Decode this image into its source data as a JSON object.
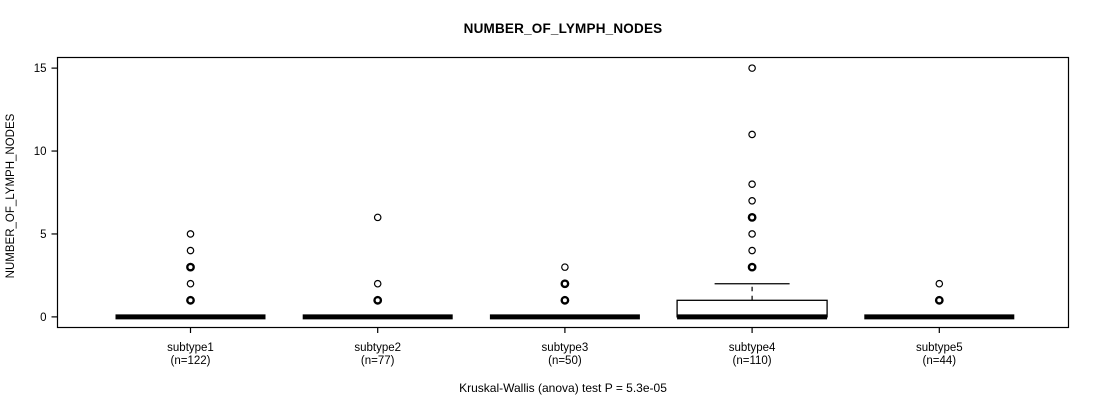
{
  "chart_data": {
    "type": "boxplot",
    "title": "NUMBER_OF_LYMPH_NODES",
    "ylabel": "NUMBER_OF_LYMPH_NODES",
    "xlabel": "",
    "footer": "Kruskal-Wallis (anova) test P = 5.3e-05",
    "yticks": [
      0,
      5,
      10,
      15
    ],
    "ylim": [
      -0.64,
      15.64
    ],
    "grid": false,
    "legend": "none",
    "frame_color": "#000000",
    "background_color": "#ffffff",
    "groups": [
      {
        "label": "subtype1",
        "sublabel": "(n=122)",
        "n": 122,
        "q1": 0,
        "median": 0,
        "q3": 0,
        "whisker_low": 0,
        "whisker_high": 0,
        "outliers": [
          {
            "v": 1,
            "bold": true
          },
          {
            "v": 2,
            "bold": false
          },
          {
            "v": 3,
            "bold": true
          },
          {
            "v": 4,
            "bold": false
          },
          {
            "v": 5,
            "bold": false
          }
        ]
      },
      {
        "label": "subtype2",
        "sublabel": "(n=77)",
        "n": 77,
        "q1": 0,
        "median": 0,
        "q3": 0,
        "whisker_low": 0,
        "whisker_high": 0,
        "outliers": [
          {
            "v": 1,
            "bold": true
          },
          {
            "v": 2,
            "bold": false
          },
          {
            "v": 6,
            "bold": false
          }
        ]
      },
      {
        "label": "subtype3",
        "sublabel": "(n=50)",
        "n": 50,
        "q1": 0,
        "median": 0,
        "q3": 0,
        "whisker_low": 0,
        "whisker_high": 0,
        "outliers": [
          {
            "v": 1,
            "bold": true
          },
          {
            "v": 2,
            "bold": true
          },
          {
            "v": 3,
            "bold": false
          }
        ]
      },
      {
        "label": "subtype4",
        "sublabel": "(n=110)",
        "n": 110,
        "q1": 0,
        "median": 0,
        "q3": 1,
        "whisker_low": 0,
        "whisker_high": 2,
        "outliers": [
          {
            "v": 3,
            "bold": true
          },
          {
            "v": 4,
            "bold": false
          },
          {
            "v": 5,
            "bold": false
          },
          {
            "v": 6,
            "bold": true
          },
          {
            "v": 7,
            "bold": false
          },
          {
            "v": 8,
            "bold": false
          },
          {
            "v": 11,
            "bold": false
          },
          {
            "v": 15,
            "bold": false
          }
        ]
      },
      {
        "label": "subtype5",
        "sublabel": "(n=44)",
        "n": 44,
        "q1": 0,
        "median": 0,
        "q3": 0,
        "whisker_low": 0,
        "whisker_high": 0,
        "outliers": [
          {
            "v": 1,
            "bold": true
          },
          {
            "v": 2,
            "bold": false
          }
        ]
      }
    ]
  }
}
